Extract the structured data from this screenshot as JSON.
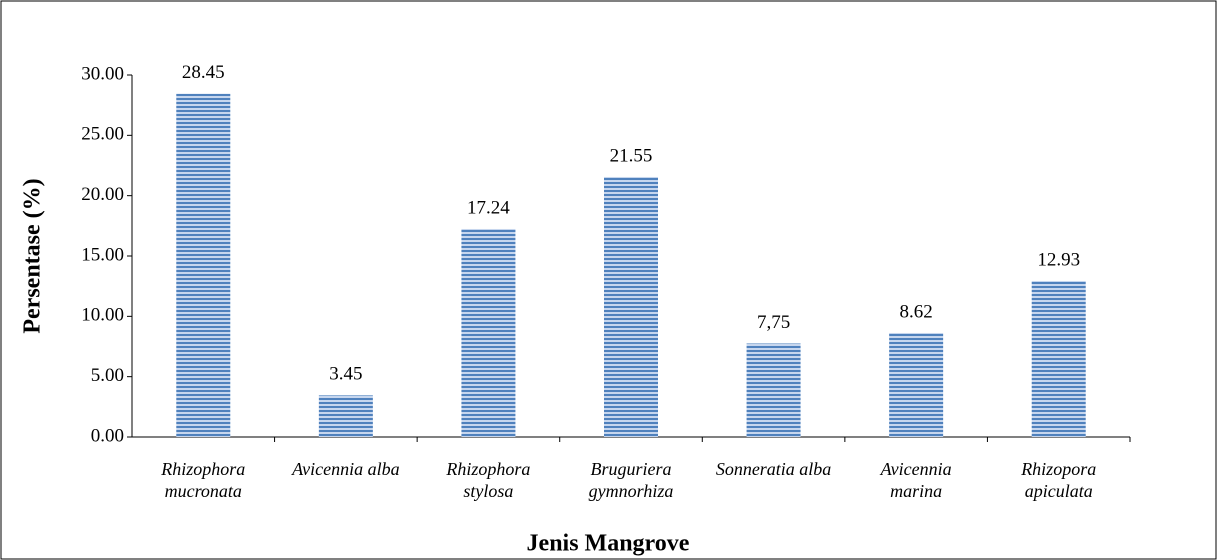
{
  "chart_data": {
    "type": "bar",
    "x_label": "Jenis Mangrove",
    "y_label": "Persentase (%)",
    "categories": [
      "Rhizophora mucronata",
      "Avicennia alba",
      "Rhizophora stylosa",
      "Bruguriera gymnorhiza",
      "Sonneratia alba",
      "Avicennia marina",
      "Rhizopora apiculata"
    ],
    "values": [
      28.45,
      3.45,
      17.24,
      21.55,
      7.75,
      8.62,
      12.93
    ],
    "value_labels": [
      "28.45",
      "3.45",
      "17.24",
      "21.55",
      "7,75",
      "8.62",
      "12.93"
    ],
    "color": "#4f81bd",
    "ylim": [
      0,
      30
    ],
    "yticks": [
      {
        "value": 0,
        "label": "0.00"
      },
      {
        "value": 5,
        "label": "5.00"
      },
      {
        "value": 10,
        "label": "10.00"
      },
      {
        "value": 15,
        "label": "15.00"
      },
      {
        "value": 20,
        "label": "20.00"
      },
      {
        "value": 25,
        "label": "25.00"
      },
      {
        "value": 30,
        "label": "30.00"
      }
    ],
    "grid": false
  }
}
